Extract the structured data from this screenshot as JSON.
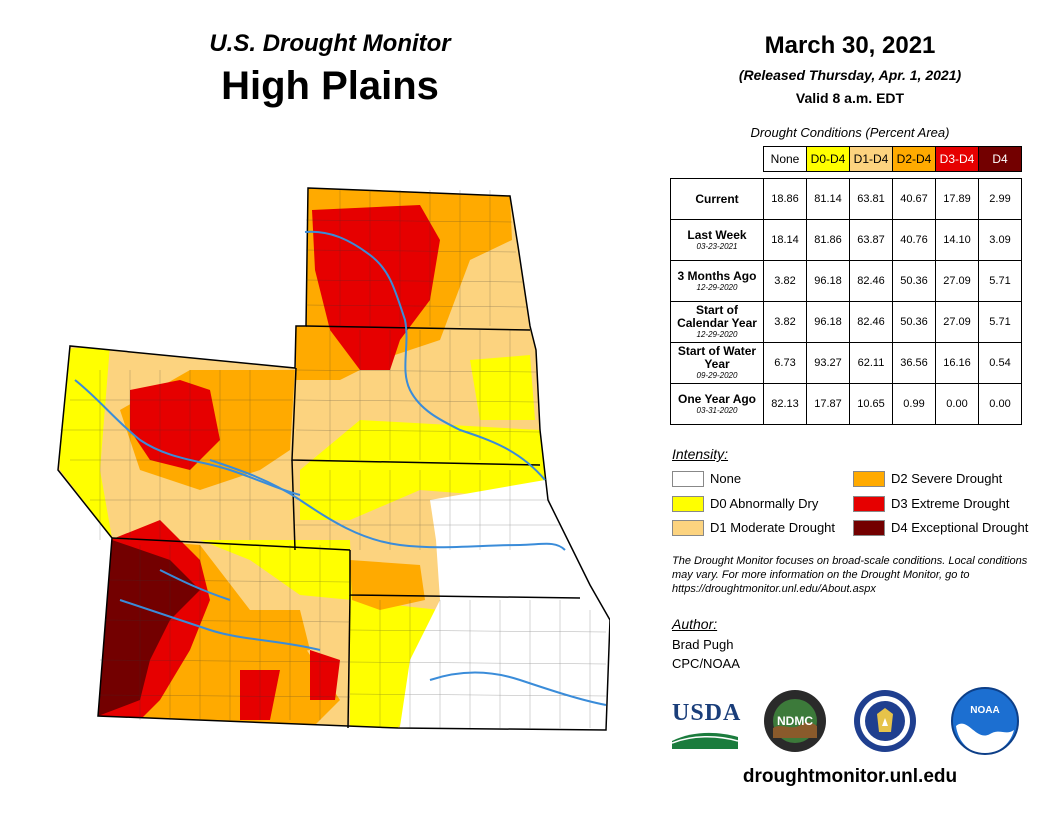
{
  "header": {
    "subtitle": "U.S. Drought Monitor",
    "region": "High Plains",
    "date": "March 30, 2021",
    "released": "(Released Thursday, Apr. 1, 2021)",
    "valid": "Valid 8 a.m. EDT"
  },
  "table": {
    "title": "Drought Conditions (Percent Area)",
    "columns": [
      {
        "label": "None",
        "color": "#ffffff",
        "text_color": "#000000"
      },
      {
        "label": "D0-D4",
        "color": "#ffff00",
        "text_color": "#000000"
      },
      {
        "label": "D1-D4",
        "color": "#fcd37f",
        "text_color": "#000000"
      },
      {
        "label": "D2-D4",
        "color": "#ffaa00",
        "text_color": "#000000"
      },
      {
        "label": "D3-D4",
        "color": "#e60000",
        "text_color": "#ffffff"
      },
      {
        "label": "D4",
        "color": "#730000",
        "text_color": "#ffffff"
      }
    ],
    "rows": [
      {
        "label": "Current",
        "date": "",
        "values": [
          "18.86",
          "81.14",
          "63.81",
          "40.67",
          "17.89",
          "2.99"
        ]
      },
      {
        "label": "Last Week",
        "date": "03-23-2021",
        "values": [
          "18.14",
          "81.86",
          "63.87",
          "40.76",
          "14.10",
          "3.09"
        ]
      },
      {
        "label": "3 Months Ago",
        "date": "12-29-2020",
        "values": [
          "3.82",
          "96.18",
          "82.46",
          "50.36",
          "27.09",
          "5.71"
        ]
      },
      {
        "label": "Start of Calendar Year",
        "date": "12-29-2020",
        "values": [
          "3.82",
          "96.18",
          "82.46",
          "50.36",
          "27.09",
          "5.71"
        ]
      },
      {
        "label": "Start of Water Year",
        "date": "09-29-2020",
        "values": [
          "6.73",
          "93.27",
          "62.11",
          "36.56",
          "16.16",
          "0.54"
        ]
      },
      {
        "label": "One Year Ago",
        "date": "03-31-2020",
        "values": [
          "82.13",
          "17.87",
          "10.65",
          "0.99",
          "0.00",
          "0.00"
        ]
      }
    ]
  },
  "legend": {
    "title": "Intensity:",
    "items": [
      {
        "label": "None",
        "color": "#ffffff"
      },
      {
        "label": "D0 Abnormally Dry",
        "color": "#ffff00"
      },
      {
        "label": "D1 Moderate Drought",
        "color": "#fcd37f"
      },
      {
        "label": "D2 Severe Drought",
        "color": "#ffaa00"
      },
      {
        "label": "D3 Extreme Drought",
        "color": "#e60000"
      },
      {
        "label": "D4 Exceptional Drought",
        "color": "#730000"
      }
    ]
  },
  "note": "The Drought Monitor focuses on broad-scale conditions. Local conditions may vary. For more information on the Drought Monitor, go to https://droughtmonitor.unl.edu/About.aspx",
  "author": {
    "title": "Author:",
    "name": "Brad Pugh",
    "org": "CPC/NOAA"
  },
  "logos": {
    "usda": "USDA",
    "ndmc": "NDMC",
    "noaa": "NOAA"
  },
  "website": "droughtmonitor.unl.edu"
}
